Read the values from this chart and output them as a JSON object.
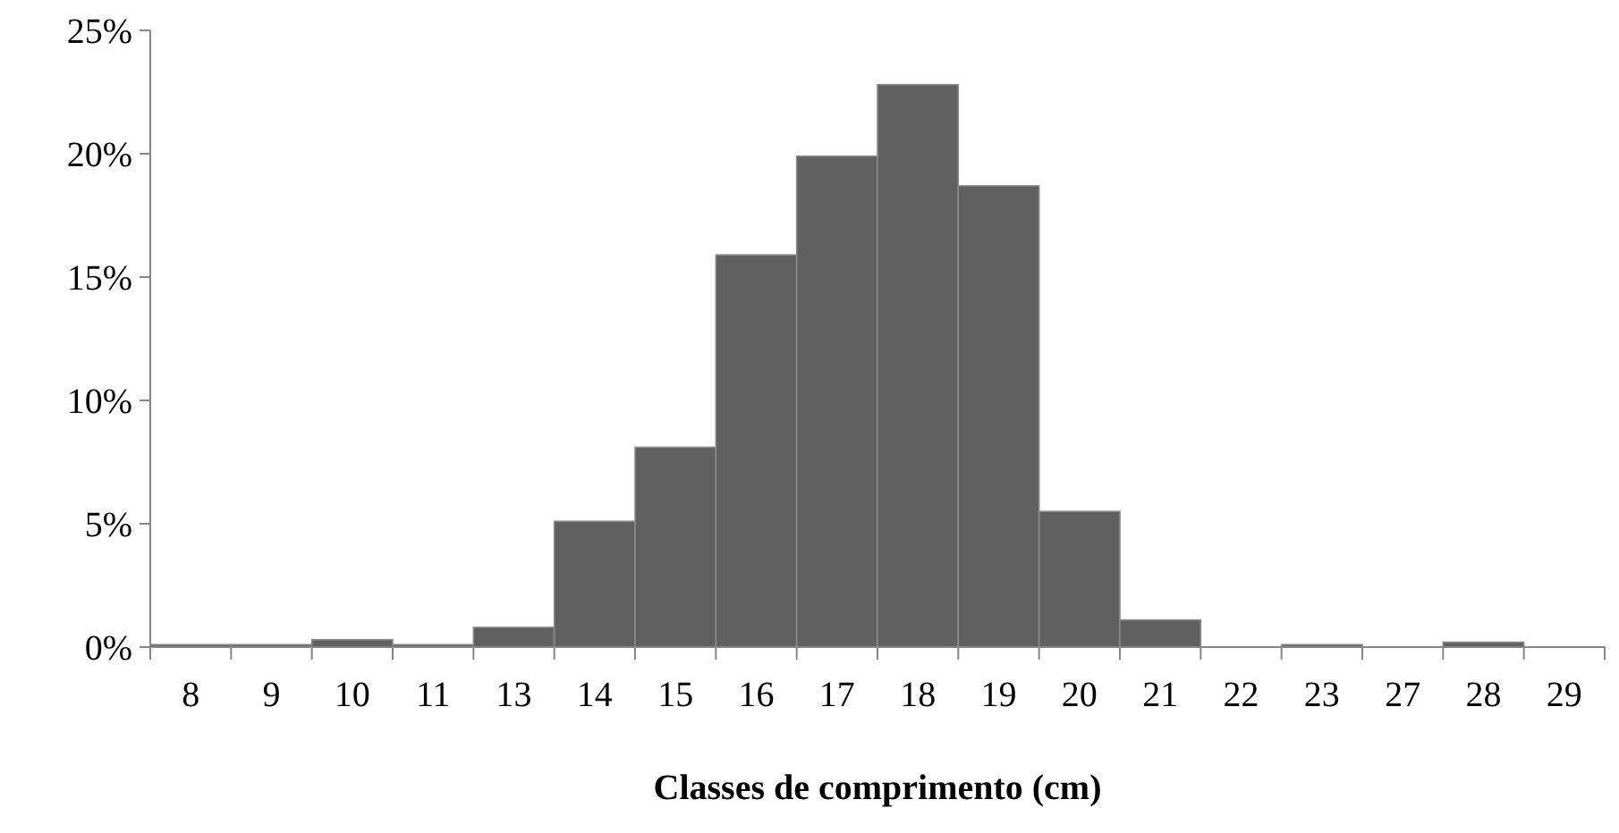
{
  "chart_data": {
    "type": "bar",
    "xlabel": "Classes de comprimento (cm)",
    "categories": [
      "8",
      "9",
      "10",
      "11",
      "13",
      "14",
      "15",
      "16",
      "17",
      "18",
      "19",
      "20",
      "21",
      "22",
      "23",
      "27",
      "28",
      "29"
    ],
    "values": [
      0.1,
      0.1,
      0.3,
      0.1,
      0.8,
      5.1,
      8.1,
      15.9,
      19.9,
      22.8,
      18.7,
      5.5,
      1.1,
      0,
      0.1,
      0,
      0.2,
      0
    ],
    "color": "#606060",
    "ylim": [
      0,
      25
    ],
    "yticks": [
      {
        "value": 0,
        "label": "0%"
      },
      {
        "value": 5,
        "label": "5%"
      },
      {
        "value": 10,
        "label": "10%"
      },
      {
        "value": 15,
        "label": "15%"
      },
      {
        "value": 20,
        "label": "20%"
      },
      {
        "value": 25,
        "label": "25%"
      }
    ],
    "grid": false
  }
}
